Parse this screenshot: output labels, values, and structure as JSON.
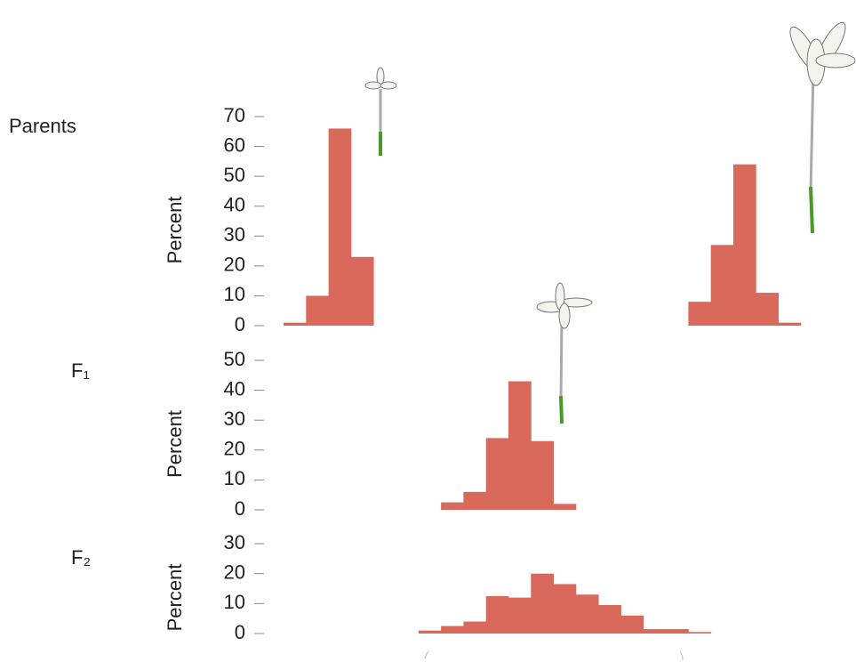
{
  "chart_data": [
    {
      "type": "bar",
      "title": "Parents",
      "ylabel": "Percent",
      "color": "#d9695a",
      "categories": [
        null,
        null,
        null,
        null,
        null,
        null,
        null,
        null,
        null,
        null,
        null,
        null,
        null,
        null,
        null,
        null,
        null,
        null,
        null,
        null,
        null,
        null,
        null
      ],
      "values": [
        1,
        10,
        66,
        23,
        null,
        null,
        null,
        null,
        null,
        null,
        null,
        null,
        null,
        null,
        null,
        null,
        null,
        null,
        8,
        27,
        54,
        11,
        1
      ],
      "ylim": [
        0,
        70
      ],
      "yticks": [
        0,
        10,
        20,
        30,
        40,
        50,
        60,
        70
      ]
    },
    {
      "type": "bar",
      "title": "F₁",
      "ylabel": "Percent",
      "color": "#d9695a",
      "categories": [
        null,
        null,
        null,
        null,
        null,
        null,
        null,
        null,
        null,
        null,
        null,
        null,
        null,
        null,
        null,
        null,
        null,
        null,
        null,
        null,
        null,
        null,
        null
      ],
      "values": [
        null,
        null,
        null,
        null,
        null,
        null,
        null,
        2.5,
        6,
        24,
        43,
        23,
        2,
        null,
        null,
        null,
        null,
        null,
        null,
        null,
        null,
        null,
        null
      ],
      "ylim": [
        0,
        50
      ],
      "yticks": [
        0,
        10,
        20,
        30,
        40,
        50
      ]
    },
    {
      "type": "bar",
      "title": "F₂",
      "ylabel": "Percent",
      "color": "#d9695a",
      "categories": [
        null,
        null,
        null,
        null,
        null,
        null,
        null,
        null,
        null,
        null,
        null,
        null,
        null,
        null,
        null,
        null,
        null,
        null,
        null,
        null,
        null,
        null,
        null
      ],
      "values": [
        null,
        null,
        null,
        null,
        null,
        null,
        1,
        2.5,
        4,
        12.5,
        12,
        20,
        16.5,
        13,
        9.5,
        6,
        1.5,
        1.5,
        0.5,
        null,
        null,
        null,
        null
      ],
      "ylim": [
        0,
        30
      ],
      "yticks": [
        0,
        10,
        20,
        30
      ]
    }
  ]
}
